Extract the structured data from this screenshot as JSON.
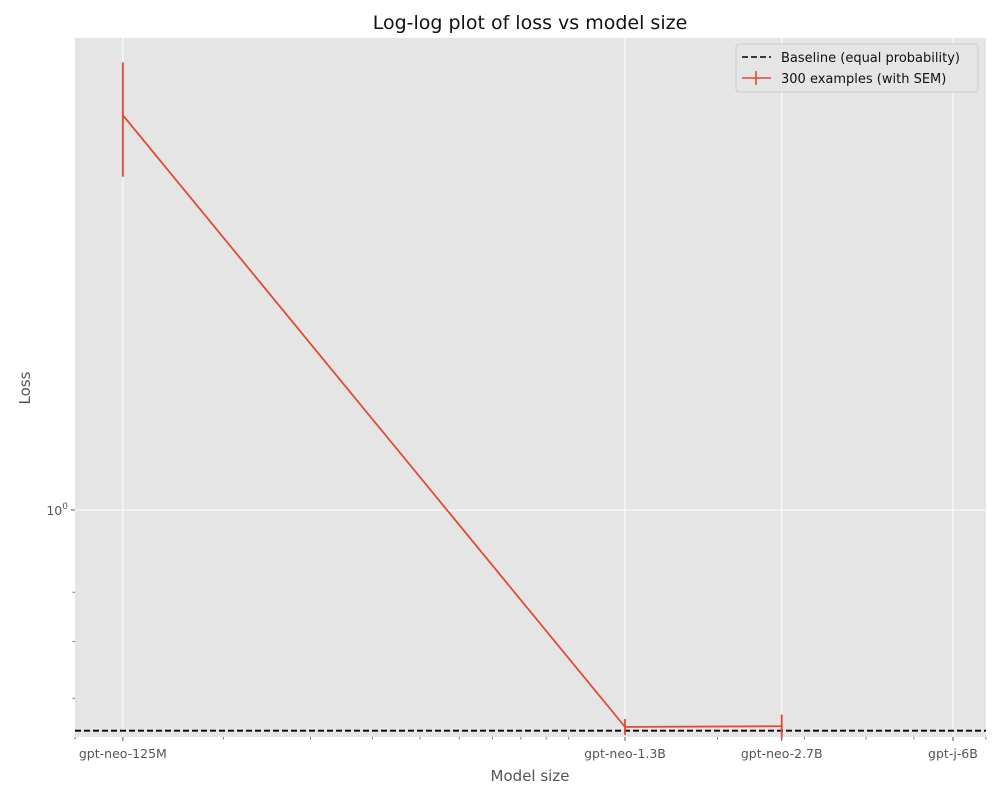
{
  "chart_data": {
    "type": "line",
    "title": "Log-log plot of loss vs model size",
    "xlabel": "Model size",
    "ylabel": "Loss",
    "x_scale": "log",
    "y_scale": "log",
    "x_ticks": [
      {
        "label": "gpt-neo-125M",
        "value": 125000000
      },
      {
        "label": "gpt-neo-1.3B",
        "value": 1300000000
      },
      {
        "label": "gpt-neo-2.7B",
        "value": 2700000000
      },
      {
        "label": "gpt-j-6B",
        "value": 6000000000
      }
    ],
    "y_major_ticks": [
      {
        "label_base": "10",
        "label_exp": "0",
        "value": 1
      }
    ],
    "y_minor_ticks": [
      0.6,
      0.7,
      0.8
    ],
    "xlim": [
      100000000,
      7000000000
    ],
    "ylim": [
      0.54,
      3.6
    ],
    "grid": true,
    "legend_position": "top-right",
    "series": [
      {
        "name": "Baseline (equal probability)",
        "style": "dashed",
        "color": "#000000",
        "y_constant": 0.5493
      },
      {
        "name": "300 examples (with SEM)",
        "style": "solid",
        "color": "#E24A33",
        "x": [
          125000000,
          1300000000,
          2700000000
        ],
        "y": [
          2.92,
          0.555,
          0.556
        ],
        "yerr": [
          0.45,
          0.012,
          0.018
        ]
      }
    ]
  }
}
